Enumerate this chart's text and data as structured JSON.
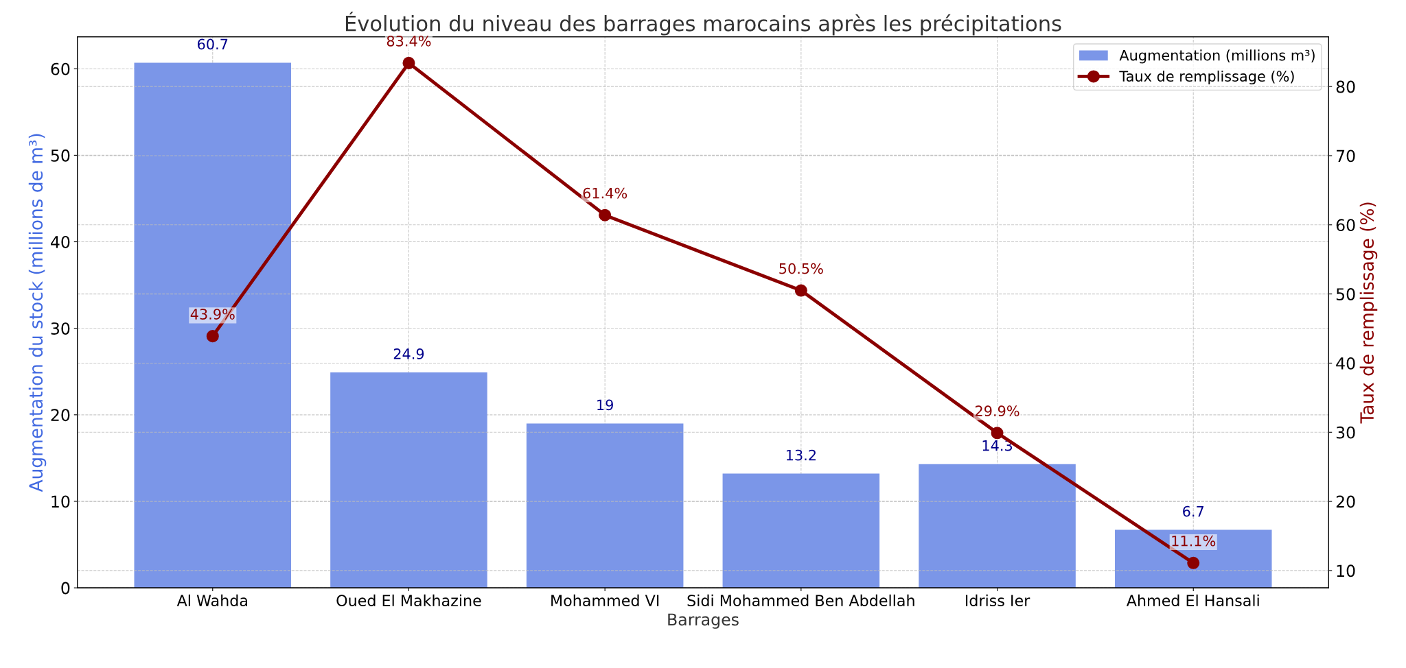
{
  "chart_data": {
    "type": "bar",
    "title": "Évolution du niveau des barrages marocains après les précipitations",
    "xlabel": "Barrages",
    "ylabel": "Augmentation du stock (millions de m³)",
    "y2label": "Taux de remplissage (%)",
    "categories": [
      "Al Wahda",
      "Oued El Makhazine",
      "Mohammed VI",
      "Sidi Mohammed Ben Abdellah",
      "Idriss Ier",
      "Ahmed El Hansali"
    ],
    "series": [
      {
        "name": "Augmentation (millions m³)",
        "color": "#7b96e8",
        "values": [
          60.7,
          24.9,
          19,
          13.2,
          14.3,
          6.7
        ],
        "value_labels": [
          "60.7",
          "24.9",
          "19",
          "13.2",
          "14.3",
          "6.7"
        ]
      },
      {
        "name": "Taux de remplissage (%)",
        "type": "line",
        "axis": "y2",
        "color": "#8b0000",
        "values": [
          43.9,
          83.4,
          61.4,
          50.5,
          29.9,
          11.1
        ],
        "value_labels": [
          "43.9%",
          "83.4%",
          "61.4%",
          "50.5%",
          "29.9%",
          "11.1%"
        ]
      }
    ],
    "ylim": [
      0,
      63.7
    ],
    "yticks": [
      0,
      10,
      20,
      30,
      40,
      50,
      60
    ],
    "y2lim": [
      7.5,
      87.2
    ],
    "y2ticks": [
      10,
      20,
      30,
      40,
      50,
      60,
      70,
      80
    ],
    "grid": true,
    "legend": "top right",
    "marker": "circle",
    "line_style": "solid"
  }
}
